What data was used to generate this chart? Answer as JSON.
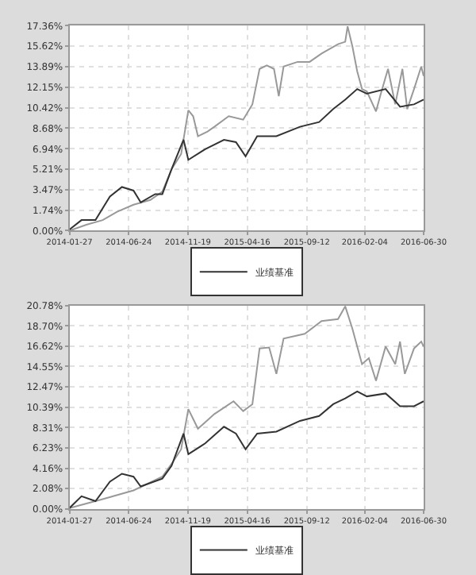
{
  "chart_data": [
    {
      "type": "line",
      "grid": true,
      "legend": "bottom",
      "xlim": [
        "2014-01-27",
        "2016-06-30"
      ],
      "xticks": [
        "2014-01-27",
        "2014-06-24",
        "2014-11-19",
        "2015-04-16",
        "2015-09-12",
        "2016-02-04",
        "2016-06-30"
      ],
      "ylim": [
        0,
        17.36
      ],
      "yticks": [
        {
          "value": 0,
          "label": "0.00%"
        },
        {
          "value": 1.74,
          "label": "1.74%"
        },
        {
          "value": 3.47,
          "label": "3.47%"
        },
        {
          "value": 5.21,
          "label": "5.21%"
        },
        {
          "value": 6.94,
          "label": "6.94%"
        },
        {
          "value": 8.68,
          "label": "8.68%"
        },
        {
          "value": 10.42,
          "label": "10.42%"
        },
        {
          "value": 12.15,
          "label": "12.15%"
        },
        {
          "value": 13.89,
          "label": "13.89%"
        },
        {
          "value": 15.62,
          "label": "15.62%"
        },
        {
          "value": 17.36,
          "label": "17.36%"
        }
      ],
      "series": [
        {
          "color": "#999999",
          "x": [
            "2014-01-27",
            "2014-03-10",
            "2014-04-20",
            "2014-05-26",
            "2014-07-06",
            "2014-08-17",
            "2014-09-16",
            "2014-10-09",
            "2014-11-02",
            "2014-11-20",
            "2014-12-02",
            "2014-12-14",
            "2015-01-07",
            "2015-01-24",
            "2015-03-01",
            "2015-04-06",
            "2015-04-29",
            "2015-05-17",
            "2015-06-04",
            "2015-06-22",
            "2015-07-04",
            "2015-07-16",
            "2015-08-20",
            "2015-09-19",
            "2015-10-19",
            "2015-11-29",
            "2015-12-17",
            "2015-12-23",
            "2016-01-04",
            "2016-01-16",
            "2016-01-28",
            "2016-02-09",
            "2016-03-03",
            "2016-03-15",
            "2016-04-02",
            "2016-04-20",
            "2016-05-08",
            "2016-05-20",
            "2016-06-06",
            "2016-06-24",
            "2016-06-30"
          ],
          "values": [
            0,
            0.5,
            0.9,
            1.6,
            2.2,
            2.6,
            3.3,
            5.2,
            6.5,
            10.2,
            9.7,
            8.0,
            8.4,
            8.8,
            9.7,
            9.4,
            10.7,
            13.7,
            14.0,
            13.7,
            11.4,
            13.9,
            14.3,
            14.3,
            15.0,
            15.8,
            16.0,
            17.3,
            15.6,
            13.5,
            12.0,
            11.8,
            10.1,
            11.6,
            13.7,
            10.7,
            13.7,
            10.3,
            12.0,
            13.9,
            13.1
          ]
        },
        {
          "name": "业绩基准",
          "color": "#333333",
          "x": [
            "2014-01-27",
            "2014-02-26",
            "2014-04-02",
            "2014-05-08",
            "2014-06-07",
            "2014-07-06",
            "2014-07-24",
            "2014-08-29",
            "2014-09-16",
            "2014-10-09",
            "2014-11-08",
            "2014-11-20",
            "2015-01-01",
            "2015-02-17",
            "2015-03-19",
            "2015-04-12",
            "2015-05-11",
            "2015-06-28",
            "2015-08-26",
            "2015-10-13",
            "2015-11-17",
            "2015-12-17",
            "2016-01-16",
            "2016-02-09",
            "2016-03-27",
            "2016-05-02",
            "2016-06-06",
            "2016-06-30"
          ],
          "values": [
            0.1,
            0.9,
            0.9,
            2.9,
            3.7,
            3.4,
            2.4,
            3.1,
            3.1,
            5.2,
            7.7,
            6.0,
            6.9,
            7.7,
            7.5,
            6.3,
            8.0,
            8.0,
            8.8,
            9.2,
            10.3,
            11.1,
            12.0,
            11.6,
            12.0,
            10.5,
            10.7,
            11.1
          ]
        }
      ]
    },
    {
      "type": "line",
      "grid": true,
      "legend": "bottom",
      "xlim": [
        "2014-01-27",
        "2016-06-30"
      ],
      "xticks": [
        "2014-01-27",
        "2014-06-24",
        "2014-11-19",
        "2015-04-16",
        "2015-09-12",
        "2016-02-04",
        "2016-06-30"
      ],
      "ylim": [
        0,
        20.78
      ],
      "yticks": [
        {
          "value": 0,
          "label": "0.00%"
        },
        {
          "value": 2.08,
          "label": "2.08%"
        },
        {
          "value": 4.16,
          "label": "4.16%"
        },
        {
          "value": 6.23,
          "label": "6.23%"
        },
        {
          "value": 8.31,
          "label": "8.31%"
        },
        {
          "value": 10.39,
          "label": "10.39%"
        },
        {
          "value": 12.47,
          "label": "12.47%"
        },
        {
          "value": 14.55,
          "label": "14.55%"
        },
        {
          "value": 16.62,
          "label": "16.62%"
        },
        {
          "value": 18.7,
          "label": "18.70%"
        },
        {
          "value": 20.78,
          "label": "20.78%"
        }
      ],
      "series": [
        {
          "color": "#999999",
          "x": [
            "2014-01-27",
            "2014-04-20",
            "2014-07-06",
            "2014-09-16",
            "2014-10-09",
            "2014-11-02",
            "2014-11-20",
            "2014-12-02",
            "2014-12-14",
            "2015-01-24",
            "2015-03-13",
            "2015-04-06",
            "2015-04-29",
            "2015-05-17",
            "2015-06-10",
            "2015-06-28",
            "2015-07-16",
            "2015-09-07",
            "2015-10-19",
            "2015-11-29",
            "2015-12-17",
            "2016-01-04",
            "2016-01-16",
            "2016-01-28",
            "2016-02-14",
            "2016-03-03",
            "2016-03-27",
            "2016-04-20",
            "2016-05-02",
            "2016-05-14",
            "2016-06-06",
            "2016-06-24",
            "2016-06-30"
          ],
          "values": [
            0.1,
            1.0,
            1.9,
            3.3,
            4.6,
            6.1,
            10.2,
            9.2,
            8.2,
            9.7,
            11.0,
            10.0,
            10.7,
            16.4,
            16.5,
            13.8,
            17.4,
            17.9,
            19.2,
            19.4,
            20.7,
            18.4,
            16.6,
            14.8,
            15.4,
            13.1,
            16.6,
            14.8,
            17.1,
            13.8,
            16.4,
            17.1,
            16.6
          ]
        },
        {
          "name": "业绩基准",
          "color": "#333333",
          "x": [
            "2014-01-27",
            "2014-02-26",
            "2014-04-02",
            "2014-05-08",
            "2014-06-07",
            "2014-07-06",
            "2014-07-24",
            "2014-09-16",
            "2014-10-09",
            "2014-11-08",
            "2014-11-20",
            "2015-01-01",
            "2015-02-17",
            "2015-03-19",
            "2015-04-12",
            "2015-05-11",
            "2015-06-28",
            "2015-08-26",
            "2015-10-13",
            "2015-11-17",
            "2015-12-17",
            "2016-01-16",
            "2016-02-09",
            "2016-03-27",
            "2016-05-02",
            "2016-06-06",
            "2016-06-30"
          ],
          "values": [
            0.1,
            1.3,
            0.8,
            2.8,
            3.6,
            3.3,
            2.3,
            3.1,
            4.4,
            7.7,
            5.6,
            6.7,
            8.4,
            7.7,
            6.1,
            7.7,
            7.9,
            9.0,
            9.5,
            10.7,
            11.3,
            12.0,
            11.5,
            11.8,
            10.5,
            10.5,
            11.0
          ]
        }
      ]
    }
  ]
}
